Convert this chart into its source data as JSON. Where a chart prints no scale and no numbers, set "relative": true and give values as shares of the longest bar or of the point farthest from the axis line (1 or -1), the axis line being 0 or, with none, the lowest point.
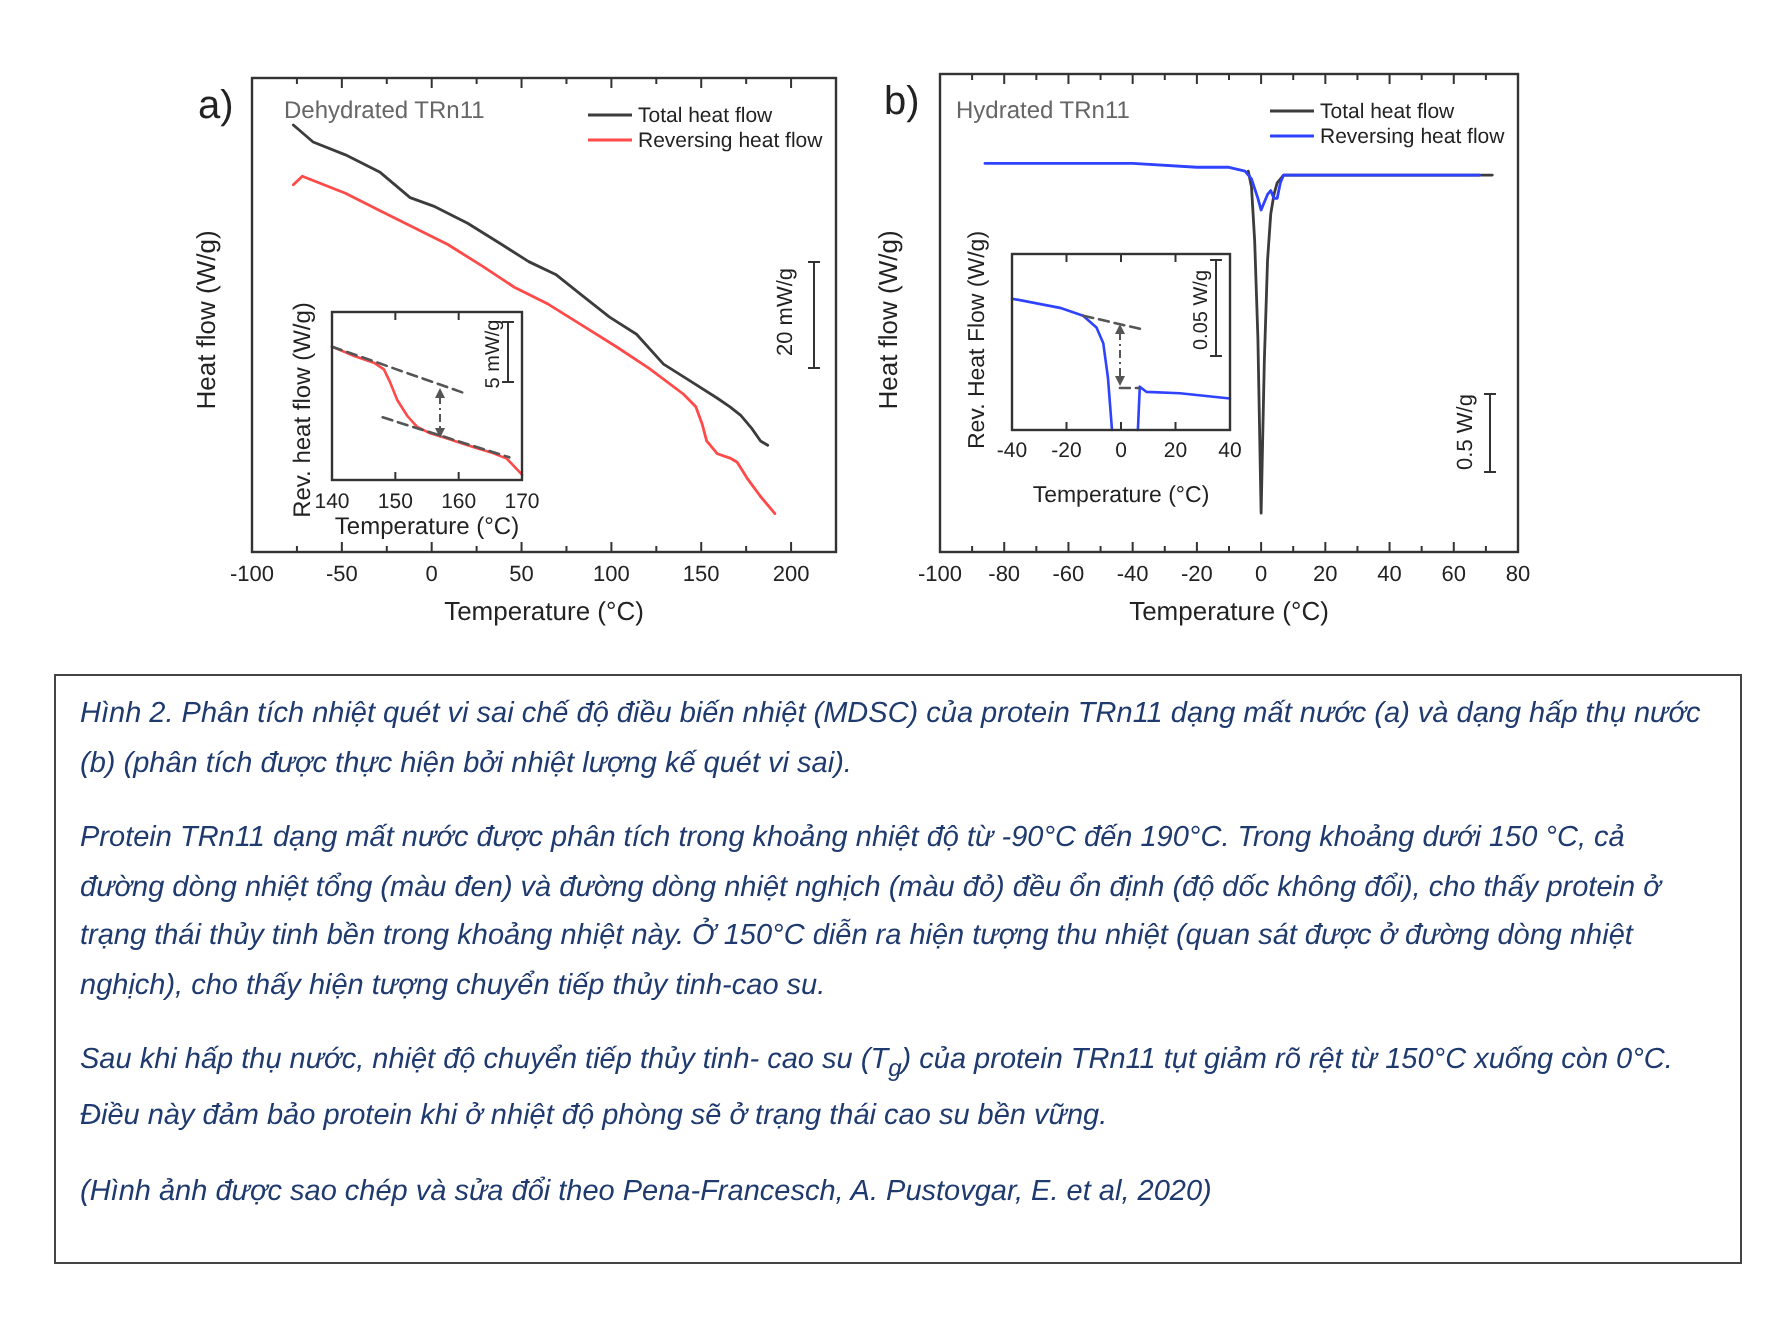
{
  "chart_data": [
    {
      "type": "line",
      "title": "a)",
      "subtitle": "Dehydrated TRn11",
      "xlabel": "Temperature (°C)",
      "ylabel": "Heat flow (W/g)",
      "relative": true,
      "xlim": [
        -100,
        225
      ],
      "xticks": [
        -100,
        {
          "value": -75,
          "label": null
        },
        -50,
        {
          "value": -25,
          "label": null
        },
        0,
        {
          "value": 25,
          "label": null
        },
        50,
        {
          "value": 75,
          "label": null
        },
        100,
        {
          "value": 125,
          "label": null
        },
        150,
        {
          "value": 175,
          "label": null
        },
        200
      ],
      "legend": "top right",
      "annotations": [
        "20 mW/g"
      ],
      "series": [
        {
          "name": "Total heat flow",
          "color": "#3c3c3c",
          "x": [
            -77,
            -66,
            -48,
            -29,
            -12,
            1,
            20,
            39,
            54,
            69,
            84,
            99,
            114,
            129,
            144,
            159,
            166,
            172,
            178,
            183,
            187
          ],
          "values": [
            1,
            0.96,
            0.93,
            0.89,
            0.83,
            0.81,
            0.77,
            0.72,
            0.68,
            0.65,
            0.6,
            0.55,
            0.51,
            0.44,
            0.4,
            0.36,
            0.34,
            0.32,
            0.29,
            0.26,
            0.25
          ]
        },
        {
          "name": "Reversing heat flow",
          "color": "#ff4a4a",
          "x": [
            -77,
            -72,
            -66,
            -48,
            -29,
            -10,
            9,
            28,
            46,
            65,
            84,
            103,
            121,
            140,
            147,
            150.5,
            153,
            159,
            166,
            170,
            176,
            183,
            191
          ],
          "values": [
            0.86,
            0.88,
            0.87,
            0.84,
            0.8,
            0.76,
            0.72,
            0.67,
            0.62,
            0.58,
            0.53,
            0.48,
            0.43,
            0.37,
            0.34,
            0.3,
            0.26,
            0.23,
            0.22,
            0.21,
            0.17,
            0.13,
            0.09
          ]
        }
      ]
    },
    {
      "type": "line",
      "xlabel": "Temperature (°C)",
      "ylabel": "Rev. heat flow (W/g)",
      "relative": true,
      "xlim": [
        140,
        170
      ],
      "xticks": [
        140,
        150,
        160,
        170
      ],
      "annotations": [
        "5 mW/g"
      ],
      "series": [
        {
          "color": "#ff4a4a",
          "x": [
            140,
            143.5,
            146.6,
            148.2,
            149.2,
            150.3,
            151.9,
            153.4,
            155.5,
            157.6,
            160.2,
            162.8,
            165.5,
            167.6,
            170
          ],
          "values": [
            1,
            0.93,
            0.88,
            0.83,
            0.73,
            0.6,
            0.48,
            0.4,
            0.35,
            0.32,
            0.28,
            0.24,
            0.2,
            0.16,
            0.04
          ]
        },
        {
          "line_style": "dashed",
          "color": "#555555",
          "x": [
            140,
            161
          ],
          "values": [
            1,
            0.65
          ]
        },
        {
          "line_style": "dashed",
          "color": "#555555",
          "x": [
            148,
            168
          ],
          "values": [
            0.47,
            0.17
          ]
        }
      ]
    },
    {
      "type": "line",
      "title": "b)",
      "subtitle": "Hydrated TRn11",
      "xlabel": "Temperature (°C)",
      "ylabel": "Heat flow (W/g)",
      "relative": true,
      "xlim": [
        -100,
        80
      ],
      "xticks": [
        -100,
        {
          "value": -90,
          "label": null
        },
        -80,
        {
          "value": -70,
          "label": null
        },
        -60,
        {
          "value": -50,
          "label": null
        },
        -40,
        {
          "value": -30,
          "label": null
        },
        -20,
        {
          "value": -10,
          "label": null
        },
        0,
        {
          "value": 10,
          "label": null
        },
        20,
        {
          "value": 30,
          "label": null
        },
        40,
        {
          "value": 50,
          "label": null
        },
        60,
        {
          "value": 70,
          "label": null
        },
        80
      ],
      "legend": "top right",
      "annotations": [
        "0.5 W/g"
      ],
      "series": [
        {
          "name": "Total heat flow",
          "color": "#3c3c3c",
          "x": [
            -4,
            -3,
            -2,
            -1,
            0,
            1,
            2,
            3,
            4,
            5,
            7,
            72
          ],
          "values": [
            0.98,
            0.94,
            0.8,
            0.55,
            0.1,
            0.49,
            0.75,
            0.87,
            0.92,
            0.95,
            0.97,
            0.97
          ]
        },
        {
          "name": "Reversing heat flow",
          "color": "#2f43ff",
          "x": [
            -86,
            -60,
            -40,
            -20,
            -10,
            -5,
            -3,
            -1,
            0,
            1,
            2,
            3,
            4,
            5,
            6,
            7,
            20,
            40,
            68
          ],
          "values": [
            1,
            1,
            1,
            0.99,
            0.99,
            0.98,
            0.96,
            0.91,
            0.88,
            0.9,
            0.92,
            0.93,
            0.91,
            0.91,
            0.95,
            0.97,
            0.97,
            0.97,
            0.97
          ]
        }
      ]
    },
    {
      "type": "line",
      "xlabel": "Temperature (°C)",
      "ylabel": "Rev. Heat Flow (W/g)",
      "relative": true,
      "xlim": [
        -40,
        40
      ],
      "xticks": [
        -40,
        -20,
        0,
        20,
        40
      ],
      "annotations": [
        "0.05 W/g"
      ],
      "series": [
        {
          "color": "#2f43ff",
          "x": [
            -40,
            -22.4,
            -13.9,
            -9,
            -6.5,
            -4.8,
            -3.3
          ],
          "values": [
            1,
            0.93,
            0.87,
            0.78,
            0.66,
            0.4,
            0
          ]
        },
        {
          "color": "#2f43ff",
          "x": [
            6.2,
            6.9,
            9.4,
            21.6,
            40
          ],
          "values": [
            0,
            0.33,
            0.29,
            0.28,
            0.24
          ]
        },
        {
          "line_style": "dashed",
          "color": "#555555",
          "x": [
            -13.8,
            7
          ],
          "values": [
            0.87,
            0.77
          ]
        },
        {
          "line_style": "dashed",
          "color": "#555555",
          "x": [
            -0.4,
            6.5
          ],
          "values": [
            0.32,
            0.32
          ]
        }
      ]
    },
    {
      "type": "other",
      "annotations": [
        "Hình 2. Phân tích nhiệt quét vi sai chế độ điều biến nhiệt (MDSC) của protein TRn11 dạng mất nước (a) và dạng hấp thụ nước (b) (phân tích được thực hiện bởi nhiệt lượng kế quét vi sai).",
        "Protein TRn11 dạng mất nước được phân tích trong khoảng nhiệt độ từ -90°C đến 190°C. Trong khoảng dưới 150 °C, cả đường dòng nhiệt tổng (màu đen) và đường dòng nhiệt nghịch (màu đỏ) đều ổn định (độ dốc không đổi), cho thấy protein ở trạng thái thủy tinh bền trong khoảng nhiệt này. Ở 150°C diễn ra hiện tượng thu nhiệt (quan sát được ở đường dòng nhiệt nghịch), cho thấy hiện tượng chuyển tiếp thủy tinh-cao su.",
        "Sau khi hấp thụ nước, nhiệt độ chuyển tiếp thủy tinh- cao su (T$_{g}$) của protein TRn11 tụt giảm rõ rệt từ 150°C xuống còn 0°C. Điều này đảm bảo protein khi ở nhiệt độ phòng sẽ ở trạng thái cao su bền vững.",
        "(Hình ảnh được sao chép và sửa đổi theo Pena-Francesch, A. Pustovgar, E. et al, 2020)"
      ]
    }
  ]
}
